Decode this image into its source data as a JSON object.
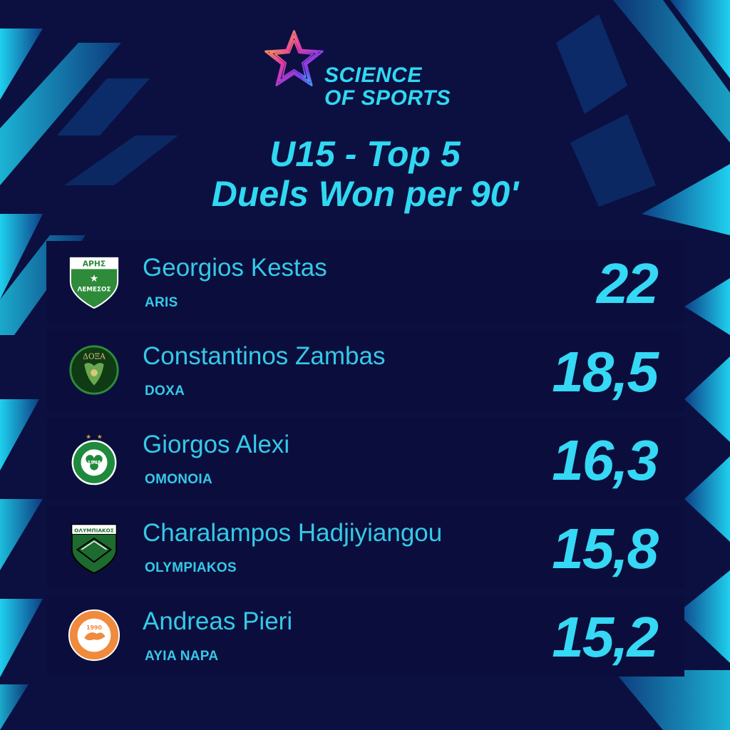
{
  "brand": {
    "line1": "SCIENCE",
    "line2": "OF SPORTS",
    "logo_icon": "star-swirl-logo-icon"
  },
  "title": {
    "line1": "U15 - Top 5",
    "line2": "Duels Won per 90'"
  },
  "rows": [
    {
      "player": "Georgios Kestas",
      "club": "ARIS",
      "value": "22",
      "badge_icon": "aris-limassol-crest-icon",
      "badge_text_top": "ΑΡΗΣ",
      "badge_text_bottom": "ΛΕΜΕΣΟΣ"
    },
    {
      "player": "Constantinos Zambas",
      "club": "DOXA",
      "value": "18,5",
      "badge_icon": "doxa-crest-icon",
      "badge_text_top": "ΔΟΞΑ"
    },
    {
      "player": "Giorgos Alexi",
      "club": "OMONOIA",
      "value": "16,3",
      "badge_icon": "omonoia-crest-icon",
      "badge_text_center": "1948"
    },
    {
      "player": "Charalampos Hadjiyiangou",
      "club": "OLYMPIAKOS",
      "value": "15,8",
      "badge_icon": "olympiakos-crest-icon",
      "badge_text_top": "ΟΛΥΜΠΙΑΚΟΣ"
    },
    {
      "player": "Andreas Pieri",
      "club": "AYIA NAPA",
      "value": "15,2",
      "badge_icon": "ayia-napa-crest-icon",
      "badge_text_center": "1990"
    }
  ],
  "colors": {
    "background": "#0b1040",
    "accent": "#30d8f2",
    "stripe": "#1fc6e6"
  }
}
